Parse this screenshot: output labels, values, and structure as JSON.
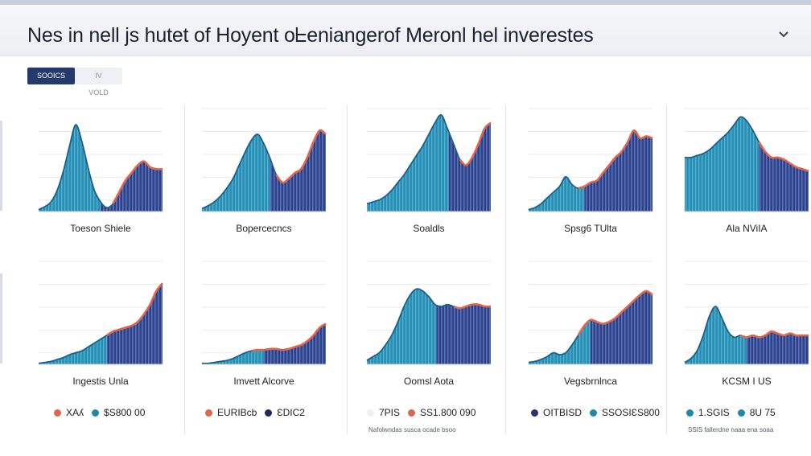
{
  "header": {
    "title": "Nes in nell js hutet of Hoyent oᖶeniangerof Meronl hel inverestes"
  },
  "tabs": [
    {
      "label": "SOOICS",
      "active": true
    },
    {
      "label": "IV VOLD",
      "active": false
    }
  ],
  "colors": {
    "area": "#2a8db4",
    "stripe_dark": "#2d3f86",
    "accent": "#e0664c",
    "grid": "#e7e9ee"
  },
  "chart_data": [
    {
      "type": "area",
      "caption": "Toeson Shiele",
      "ylim": [
        0,
        100
      ],
      "x": [
        0,
        5,
        10,
        15,
        20,
        25,
        30,
        35,
        40,
        45,
        50,
        55,
        60,
        65,
        70,
        75,
        80,
        85,
        90,
        95,
        100
      ],
      "series": [
        {
          "values": [
            2,
            5,
            10,
            22,
            42,
            68,
            90,
            72,
            45,
            22,
            10,
            4,
            8,
            20,
            32,
            40,
            48,
            52,
            46,
            44,
            44
          ]
        }
      ],
      "accent_from": 60,
      "split": 50
    },
    {
      "type": "area",
      "caption": "Bopercecncs",
      "ylim": [
        0,
        100
      ],
      "x": [
        0,
        5,
        10,
        15,
        20,
        25,
        30,
        35,
        40,
        45,
        50,
        55,
        60,
        65,
        70,
        75,
        80,
        85,
        90,
        95,
        100
      ],
      "series": [
        {
          "values": [
            3,
            6,
            10,
            16,
            24,
            34,
            48,
            62,
            74,
            80,
            70,
            55,
            38,
            30,
            34,
            40,
            44,
            56,
            72,
            84,
            80
          ]
        }
      ],
      "accent_from": 60,
      "split": 55
    },
    {
      "type": "area",
      "caption": "Soaldls",
      "ylim": [
        0,
        100
      ],
      "x": [
        0,
        5,
        10,
        15,
        20,
        25,
        30,
        35,
        40,
        45,
        50,
        55,
        60,
        65,
        70,
        75,
        80,
        85,
        90,
        95,
        100
      ],
      "series": [
        {
          "values": [
            8,
            10,
            12,
            16,
            22,
            30,
            38,
            48,
            58,
            68,
            80,
            92,
            100,
            86,
            70,
            54,
            48,
            56,
            70,
            86,
            92
          ]
        }
      ],
      "accent_from": 75,
      "split": 66
    },
    {
      "type": "area",
      "caption": "Spsg6 TUlta",
      "ylim": [
        0,
        100
      ],
      "x": [
        0,
        5,
        10,
        15,
        20,
        25,
        30,
        35,
        40,
        45,
        50,
        55,
        60,
        65,
        70,
        75,
        80,
        85,
        90,
        95,
        100
      ],
      "series": [
        {
          "values": [
            2,
            4,
            8,
            14,
            20,
            26,
            36,
            28,
            24,
            26,
            30,
            32,
            40,
            48,
            56,
            62,
            72,
            84,
            76,
            78,
            76
          ]
        }
      ],
      "accent_from": 40,
      "split": 45
    },
    {
      "type": "area",
      "caption": "Ala NViIA",
      "ylim": [
        0,
        100
      ],
      "x": [
        0,
        5,
        10,
        15,
        20,
        25,
        30,
        35,
        40,
        45,
        50,
        55,
        60,
        65,
        70,
        75,
        80,
        85,
        90,
        95,
        100
      ],
      "series": [
        {
          "values": [
            56,
            56,
            58,
            60,
            64,
            70,
            76,
            82,
            90,
            98,
            94,
            84,
            72,
            62,
            56,
            56,
            54,
            50,
            46,
            44,
            42
          ]
        }
      ],
      "accent_from": 60,
      "split": 60
    },
    {
      "type": "area",
      "caption": "Ingestis Unla",
      "ylim": [
        0,
        100
      ],
      "x": [
        0,
        5,
        10,
        15,
        20,
        25,
        30,
        35,
        40,
        45,
        50,
        55,
        60,
        65,
        70,
        75,
        80,
        85,
        90,
        95,
        100
      ],
      "series": [
        {
          "values": [
            1,
            2,
            3,
            5,
            7,
            10,
            12,
            14,
            18,
            22,
            26,
            30,
            34,
            36,
            38,
            40,
            44,
            52,
            62,
            76,
            84
          ]
        }
      ],
      "accent_from": 55,
      "split": 55
    },
    {
      "type": "area",
      "caption": "Imvett Alcorve",
      "ylim": [
        0,
        100
      ],
      "x": [
        0,
        5,
        10,
        15,
        20,
        25,
        30,
        35,
        40,
        45,
        50,
        55,
        60,
        65,
        70,
        75,
        80,
        85,
        90,
        95,
        100
      ],
      "series": [
        {
          "values": [
            1,
            1,
            2,
            3,
            4,
            6,
            9,
            12,
            14,
            15,
            15,
            16,
            16,
            15,
            16,
            18,
            20,
            24,
            30,
            38,
            42
          ]
        }
      ],
      "accent_from": 40,
      "split": 50
    },
    {
      "type": "area",
      "caption": "Oomsl Aota",
      "ylim": [
        0,
        100
      ],
      "x": [
        0,
        5,
        10,
        15,
        20,
        25,
        30,
        35,
        40,
        45,
        50,
        55,
        60,
        65,
        70,
        75,
        80,
        85,
        90,
        95,
        100
      ],
      "series": [
        {
          "values": [
            4,
            8,
            12,
            20,
            30,
            44,
            60,
            72,
            78,
            76,
            70,
            62,
            60,
            62,
            60,
            58,
            60,
            62,
            62,
            60,
            60
          ]
        }
      ],
      "accent_from": 70,
      "split": 56
    },
    {
      "type": "area",
      "caption": "Vegsbrnlnca",
      "ylim": [
        0,
        100
      ],
      "x": [
        0,
        5,
        10,
        15,
        20,
        25,
        30,
        35,
        40,
        45,
        50,
        55,
        60,
        65,
        70,
        75,
        80,
        85,
        90,
        95,
        100
      ],
      "series": [
        {
          "values": [
            2,
            3,
            5,
            8,
            12,
            10,
            12,
            20,
            30,
            40,
            46,
            44,
            42,
            44,
            48,
            54,
            60,
            66,
            72,
            76,
            72
          ]
        }
      ],
      "accent_from": 40,
      "split": 50
    },
    {
      "type": "area",
      "caption": "KCSM I US",
      "ylim": [
        0,
        100
      ],
      "x": [
        0,
        5,
        10,
        15,
        20,
        25,
        30,
        35,
        40,
        45,
        50,
        55,
        60,
        65,
        70,
        75,
        80,
        85,
        90,
        95,
        100
      ],
      "series": [
        {
          "values": [
            2,
            6,
            14,
            30,
            50,
            60,
            48,
            34,
            28,
            30,
            28,
            30,
            28,
            30,
            34,
            32,
            30,
            32,
            30,
            30,
            30
          ]
        }
      ],
      "accent_from": 45,
      "split": 50
    }
  ],
  "legends": [
    {
      "items": [
        {
          "label": "XAʎ",
          "color": "#e0664c"
        },
        {
          "label": "$S800 00",
          "color": "#1f8aa8"
        }
      ]
    },
    {
      "items": [
        {
          "label": "EURIBcb",
          "color": "#e0664c"
        },
        {
          "label": "ƐDIC2",
          "color": "#1d2c5c"
        }
      ]
    },
    {
      "items": [
        {
          "label": "7PIS",
          "color": "#eef0f3"
        },
        {
          "label": "SS1.800 090",
          "color": "#e0664c"
        }
      ]
    },
    {
      "items": [
        {
          "label": "OITBISD",
          "color": "#24356f"
        },
        {
          "label": "SSOSIƐS800",
          "color": "#1f8aa8"
        }
      ]
    },
    {
      "items": [
        {
          "label": "1.SGIS",
          "color": "#1f8aa8"
        },
        {
          "label": "8U 75",
          "color": "#1f8aa8"
        }
      ]
    }
  ],
  "footnotes": {
    "middle": "Nafolwndas susca ocade bsoo",
    "right": "SSIS fallerdne naaa ena soaa"
  }
}
